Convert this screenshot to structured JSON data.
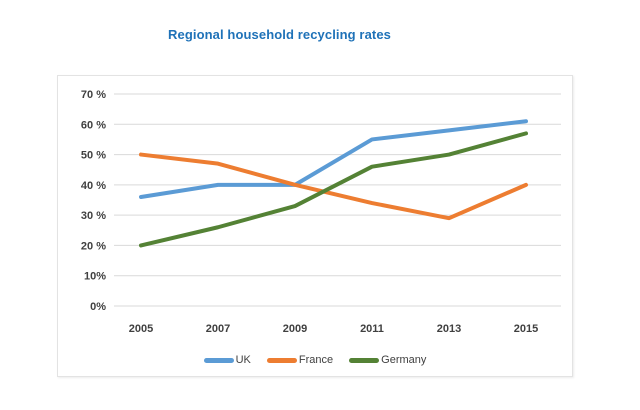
{
  "title": {
    "text": "Regional household recycling rates",
    "color": "#1F72B8"
  },
  "chart_data": {
    "type": "line",
    "title": "Regional household recycling rates",
    "categories": [
      "2005",
      "2007",
      "2009",
      "2011",
      "2013",
      "2015"
    ],
    "series": [
      {
        "name": "UK",
        "color": "#5B9BD5",
        "values": [
          36,
          40,
          40,
          55,
          58,
          61
        ]
      },
      {
        "name": "France",
        "color": "#ED7D31",
        "values": [
          50,
          47,
          40,
          34,
          29,
          40
        ]
      },
      {
        "name": "Germany",
        "color": "#548235",
        "values": [
          20,
          26,
          33,
          46,
          50,
          57
        ]
      }
    ],
    "xlabel": "",
    "ylabel": "",
    "ylim": [
      0,
      70
    ],
    "ytick_step": 10,
    "ytick_labels": [
      "0%",
      "10%",
      "20 %",
      "30 %",
      "40 %",
      "50 %",
      "60 %",
      "70 %"
    ],
    "grid": true,
    "legend_position": "bottom"
  },
  "style_colors": {
    "gridline": "#D9D9D9",
    "axis_text": "#404040",
    "card_border": "#E3E3E3",
    "legend_text": "#404040"
  }
}
